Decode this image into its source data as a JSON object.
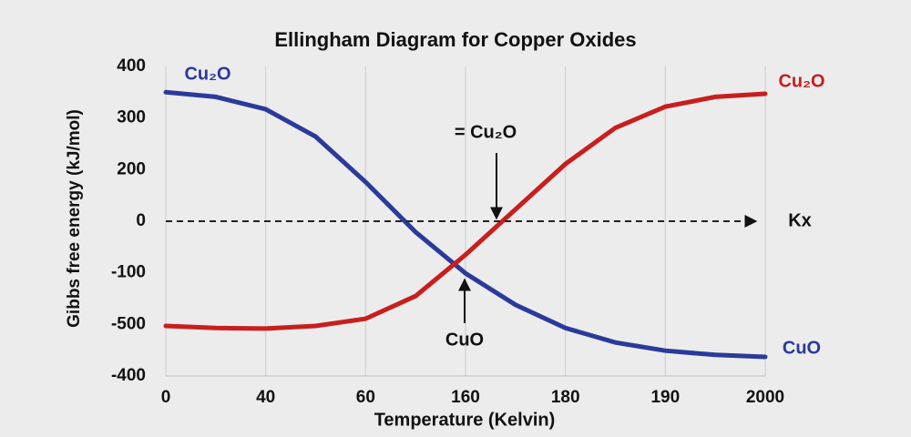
{
  "chart_data": {
    "type": "line",
    "title": "Ellingham Diagram for Copper Oxides",
    "x_label": "Temperature (Kelvin)",
    "y_label": "Gibbs free energy (kJ/mol)",
    "x": [
      0,
      0.5,
      1,
      1.5,
      2,
      2.5,
      3,
      3.5,
      4,
      4.5,
      5,
      5.5,
      6
    ],
    "series": [
      {
        "color": "#2b3a9a",
        "values": [
          5.5,
          5.41,
          5.17,
          4.64,
          3.76,
          2.79,
          1.99,
          1.38,
          0.93,
          0.65,
          0.49,
          0.41,
          0.37
        ]
      },
      {
        "color": "#c81e1e",
        "values": [
          0.97,
          0.93,
          0.92,
          0.97,
          1.11,
          1.55,
          2.35,
          3.23,
          4.11,
          4.81,
          5.22,
          5.41,
          5.47
        ]
      }
    ],
    "xlim": [
      0,
      6
    ],
    "ylim": [
      0,
      6
    ],
    "xticks": [
      0,
      {
        "value": 1,
        "label": "40"
      },
      {
        "value": 2,
        "label": "60"
      },
      {
        "value": 3,
        "label": "160"
      },
      {
        "value": 4,
        "label": "180"
      },
      {
        "value": 5,
        "label": "190"
      },
      {
        "value": 6,
        "label": "2000"
      }
    ],
    "yticks": [
      {
        "value": 0,
        "label": "-400"
      },
      {
        "value": 1,
        "label": "-500"
      },
      {
        "value": 2,
        "label": "-100"
      },
      {
        "value": 3,
        "label": "0"
      },
      {
        "value": 4,
        "label": "200"
      },
      {
        "value": 5,
        "label": "300"
      },
      {
        "value": 6,
        "label": "400"
      }
    ],
    "grid": true,
    "annotations": [
      "Cu₂O",
      "Cu₂O",
      "CuO",
      "= Cu₂O",
      "CuO",
      "Kx"
    ]
  }
}
